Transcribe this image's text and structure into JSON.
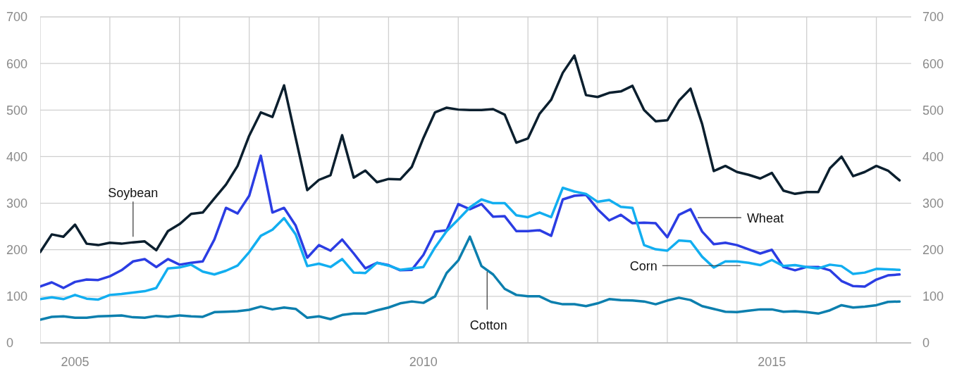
{
  "chart_data": {
    "type": "line",
    "x": [
      "2005-01",
      "2005-03",
      "2005-05",
      "2005-07",
      "2005-09",
      "2005-11",
      "2006-01",
      "2006-03",
      "2006-05",
      "2006-07",
      "2006-09",
      "2006-11",
      "2007-01",
      "2007-03",
      "2007-05",
      "2007-07",
      "2007-09",
      "2007-11",
      "2008-01",
      "2008-03",
      "2008-05",
      "2008-07",
      "2008-09",
      "2008-11",
      "2009-01",
      "2009-03",
      "2009-05",
      "2009-07",
      "2009-09",
      "2009-11",
      "2010-01",
      "2010-03",
      "2010-05",
      "2010-07",
      "2010-09",
      "2010-11",
      "2011-01",
      "2011-03",
      "2011-05",
      "2011-07",
      "2011-09",
      "2011-11",
      "2012-01",
      "2012-03",
      "2012-05",
      "2012-07",
      "2012-09",
      "2012-11",
      "2013-01",
      "2013-03",
      "2013-05",
      "2013-07",
      "2013-09",
      "2013-11",
      "2014-01",
      "2014-03",
      "2014-05",
      "2014-07",
      "2014-09",
      "2014-11",
      "2015-01",
      "2015-03",
      "2015-05",
      "2015-07",
      "2015-09",
      "2015-11",
      "2016-01",
      "2016-03",
      "2016-05",
      "2016-07",
      "2016-09",
      "2016-11",
      "2017-01",
      "2017-03",
      "2017-05"
    ],
    "series": [
      {
        "name": "Soybean",
        "color": "#0b1f2e",
        "values": [
          195,
          233,
          228,
          254,
          213,
          210,
          215,
          213,
          216,
          218,
          199,
          240,
          255,
          277,
          280,
          310,
          340,
          380,
          445,
          495,
          485,
          553,
          440,
          328,
          350,
          360,
          446,
          355,
          370,
          345,
          352,
          351,
          378,
          440,
          495,
          505,
          501,
          500,
          500,
          502,
          490,
          430,
          439,
          492,
          522,
          580,
          617,
          532,
          528,
          537,
          540,
          552,
          500,
          476,
          478,
          520,
          546,
          470,
          369,
          380,
          367,
          361,
          353,
          365,
          327,
          320,
          324,
          324,
          375,
          400,
          358,
          367,
          380,
          370,
          349
        ]
      },
      {
        "name": "Wheat",
        "color": "#2b3de3",
        "values": [
          121,
          130,
          118,
          131,
          136,
          135,
          143,
          156,
          175,
          180,
          163,
          180,
          168,
          172,
          175,
          222,
          290,
          278,
          316,
          402,
          280,
          290,
          252,
          183,
          210,
          198,
          222,
          192,
          160,
          172,
          167,
          156,
          157,
          189,
          239,
          242,
          298,
          287,
          298,
          271,
          272,
          240,
          240,
          242,
          230,
          308,
          316,
          318,
          287,
          263,
          275,
          257,
          258,
          257,
          227,
          275,
          287,
          239,
          212,
          215,
          210,
          201,
          192,
          200,
          163,
          156,
          163,
          163,
          156,
          133,
          122,
          121,
          136,
          145,
          147
        ]
      },
      {
        "name": "Corn",
        "color": "#12aef0",
        "values": [
          94,
          98,
          94,
          103,
          95,
          93,
          103,
          105,
          108,
          111,
          118,
          160,
          162,
          168,
          153,
          147,
          155,
          166,
          195,
          230,
          243,
          268,
          233,
          165,
          170,
          163,
          180,
          151,
          150,
          172,
          166,
          157,
          160,
          163,
          205,
          240,
          265,
          291,
          308,
          300,
          300,
          274,
          270,
          280,
          270,
          333,
          325,
          320,
          303,
          307,
          292,
          290,
          210,
          201,
          198,
          220,
          218,
          185,
          162,
          175,
          175,
          172,
          167,
          178,
          165,
          167,
          163,
          160,
          168,
          165,
          148,
          151,
          159,
          158,
          157
        ]
      },
      {
        "name": "Cotton",
        "color": "#0c7fae",
        "values": [
          50,
          56,
          57,
          54,
          54,
          57,
          58,
          59,
          55,
          54,
          58,
          56,
          59,
          57,
          56,
          66,
          67,
          68,
          71,
          78,
          72,
          76,
          73,
          54,
          57,
          51,
          60,
          63,
          63,
          70,
          76,
          85,
          89,
          86,
          100,
          150,
          177,
          228,
          165,
          147,
          116,
          103,
          100,
          100,
          88,
          83,
          83,
          79,
          85,
          94,
          92,
          91,
          89,
          83,
          91,
          97,
          92,
          79,
          73,
          67,
          66,
          69,
          72,
          72,
          67,
          68,
          66,
          63,
          70,
          81,
          76,
          78,
          81,
          88,
          89
        ]
      }
    ],
    "xlim": [
      "2005-01",
      "2017-07"
    ],
    "xticks": [
      {
        "value": "2005-01",
        "label": null
      },
      {
        "value": "2005-07",
        "label": "2005"
      },
      {
        "value": "2006-01",
        "label": null
      },
      {
        "value": "2007-01",
        "label": null
      },
      {
        "value": "2008-01",
        "label": null
      },
      {
        "value": "2009-01",
        "label": null
      },
      {
        "value": "2010-01",
        "label": null
      },
      {
        "value": "2010-07",
        "label": "2010"
      },
      {
        "value": "2011-01",
        "label": null
      },
      {
        "value": "2012-01",
        "label": null
      },
      {
        "value": "2013-01",
        "label": null
      },
      {
        "value": "2014-01",
        "label": null
      },
      {
        "value": "2015-01",
        "label": null
      },
      {
        "value": "2015-07",
        "label": "2015"
      },
      {
        "value": "2016-01",
        "label": null
      },
      {
        "value": "2017-01",
        "label": null
      }
    ],
    "ylim": [
      0,
      700
    ],
    "yticks": [
      0,
      100,
      200,
      300,
      400,
      500,
      600,
      700
    ],
    "y2lim": [
      0,
      700
    ],
    "y2ticks": [
      0,
      100,
      200,
      300,
      400,
      500,
      600,
      700
    ],
    "grid": true,
    "line_style": "solid"
  }
}
